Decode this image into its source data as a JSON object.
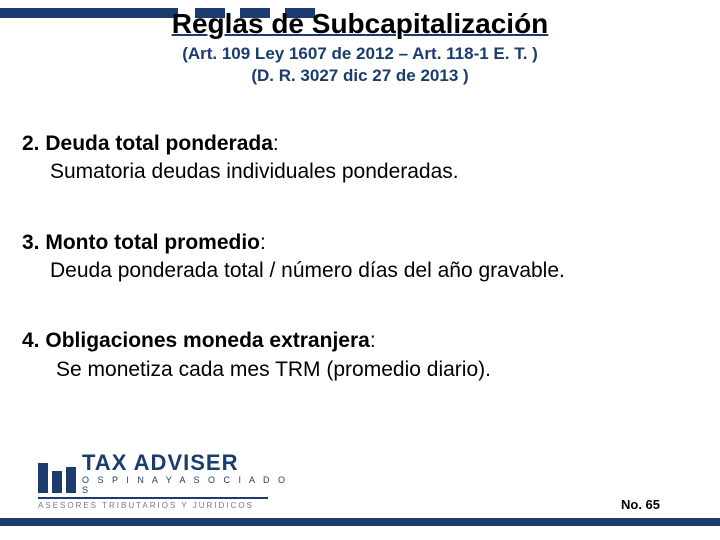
{
  "colors": {
    "accent": "#1b3c6f",
    "text": "#000000",
    "background": "#ffffff",
    "logo_sub_gray": "#7a7a7a"
  },
  "header": {
    "title": "Reglas de Subcapitalización",
    "subtitle1": "(Art. 109 Ley 1607 de 2012 – Art. 118-1 E. T. )",
    "subtitle2": "(D. R. 3027 dic 27 de 2013 )"
  },
  "items": [
    {
      "number": "2.",
      "head": "Deuda total ponderada",
      "body": "Sumatoria deudas individuales ponderadas."
    },
    {
      "number": "3.",
      "head": "Monto total promedio",
      "body": "Deuda ponderada total / número días del año gravable."
    },
    {
      "number": "4.",
      "head": "Obligaciones moneda extranjera",
      "body": "Se monetiza cada mes TRM (promedio diario)."
    }
  ],
  "logo": {
    "main": "TAX ADVISER",
    "sub1": "O S P I N A  Y  A S O C I A D O S",
    "sub2": "ASESORES TRIBUTARIOS Y JURIDICOS"
  },
  "page": {
    "label": "No. 65"
  }
}
